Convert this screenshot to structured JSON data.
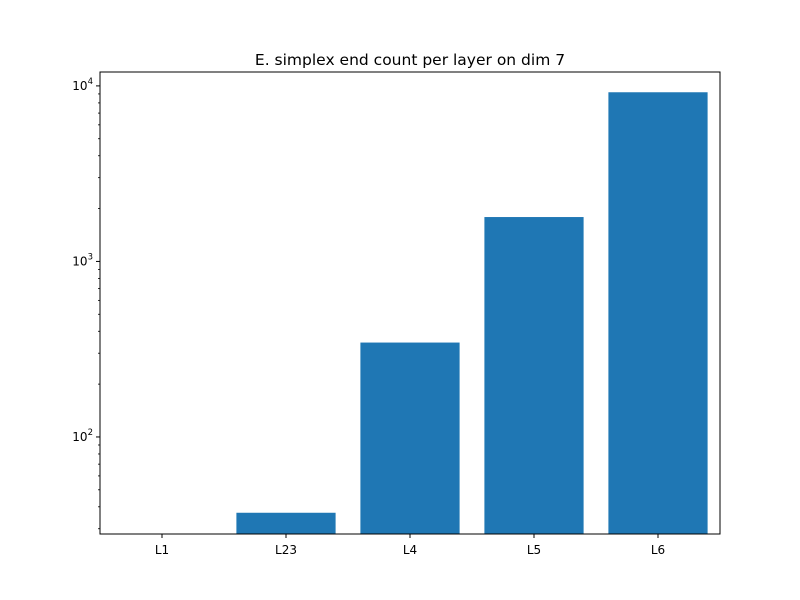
{
  "chart_data": {
    "type": "bar",
    "title": "E. simplex end count per layer on dim 7",
    "xlabel": "",
    "ylabel": "",
    "yscale": "log",
    "ylim": [
      28,
      12000
    ],
    "categories": [
      "L1",
      "L23",
      "L4",
      "L5",
      "L6"
    ],
    "values": [
      0,
      37,
      345,
      1790,
      9200
    ],
    "ytick_labels": [
      {
        "value": 100,
        "base": "10",
        "exp": "2"
      },
      {
        "value": 1000,
        "base": "10",
        "exp": "3"
      },
      {
        "value": 10000,
        "base": "10",
        "exp": "4"
      }
    ],
    "bar_color": "#1f77b4",
    "grid": false,
    "legend": "none"
  }
}
